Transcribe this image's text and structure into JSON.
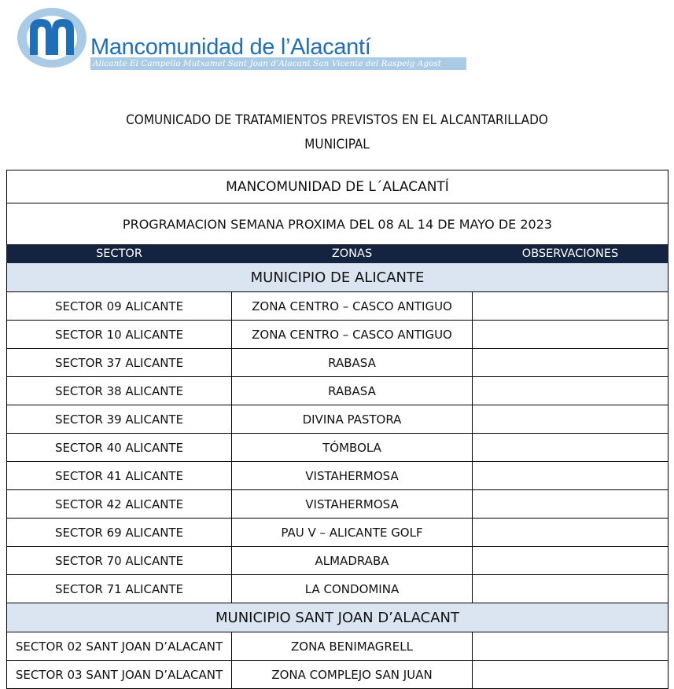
{
  "logo": {
    "name": "Mancomunidad de l’Alacantí",
    "towns": "Alicante El Campello Mutxamel Sant Joan d’Alacant San Vicente del Raspeig Agost",
    "colors": {
      "primary": "#1f6fb8",
      "light": "#a9cbe6"
    }
  },
  "document": {
    "title_line1": "COMUNICADO DE TRATAMIENTOS PREVISTOS EN EL ALCANTARILLADO",
    "title_line2": "MUNICIPAL"
  },
  "table": {
    "title": "MANCOMUNIDAD DE L´ALACANTÍ",
    "subtitle": "PROGRAMACION SEMANA PROXIMA DEL 08 AL 14 DE MAYO DE 2023",
    "headers": [
      "SECTOR",
      "ZONAS",
      "OBSERVACIONES"
    ],
    "header_color": "#14233f",
    "group_color": "#dbe5f1",
    "groups": [
      {
        "name": "MUNICIPIO DE ALICANTE",
        "rows": [
          {
            "sector": "SECTOR 09 ALICANTE",
            "zona": "ZONA CENTRO – CASCO ANTIGUO",
            "obs": ""
          },
          {
            "sector": "SECTOR 10 ALICANTE",
            "zona": "ZONA CENTRO – CASCO ANTIGUO",
            "obs": ""
          },
          {
            "sector": "SECTOR 37 ALICANTE",
            "zona": "RABASA",
            "obs": ""
          },
          {
            "sector": "SECTOR 38 ALICANTE",
            "zona": "RABASA",
            "obs": ""
          },
          {
            "sector": "SECTOR 39 ALICANTE",
            "zona": "DIVINA PASTORA",
            "obs": ""
          },
          {
            "sector": "SECTOR 40 ALICANTE",
            "zona": "TÓMBOLA",
            "obs": ""
          },
          {
            "sector": "SECTOR 41 ALICANTE",
            "zona": "VISTAHERMOSA",
            "obs": ""
          },
          {
            "sector": "SECTOR 42 ALICANTE",
            "zona": "VISTAHERMOSA",
            "obs": ""
          },
          {
            "sector": "SECTOR 69 ALICANTE",
            "zona": "PAU V – ALICANTE GOLF",
            "obs": ""
          },
          {
            "sector": "SECTOR 70 ALICANTE",
            "zona": "ALMADRABA",
            "obs": ""
          },
          {
            "sector": "SECTOR 71 ALICANTE",
            "zona": "LA CONDOMINA",
            "obs": ""
          }
        ]
      },
      {
        "name": "MUNICIPIO SANT JOAN D’ALACANT",
        "rows": [
          {
            "sector": "SECTOR 02 SANT JOAN D’ALACANT",
            "zona": "ZONA BENIMAGRELL",
            "obs": ""
          },
          {
            "sector": "SECTOR 03 SANT JOAN D’ALACANT",
            "zona": "ZONA COMPLEJO SAN JUAN",
            "obs": ""
          }
        ]
      }
    ]
  }
}
